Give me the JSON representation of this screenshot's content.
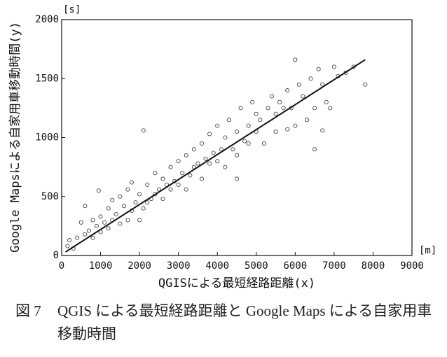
{
  "chart_data": {
    "type": "scatter",
    "y_unit": "[s]",
    "x_unit": "[m]",
    "xlabel": "QGISによる最短経路距離(x)",
    "ylabel": "Google Mapsによる自家用車移動時間(y)",
    "xlim": [
      0,
      9000
    ],
    "xticks": [
      0,
      1000,
      2000,
      3000,
      4000,
      5000,
      6000,
      7000,
      8000,
      9000
    ],
    "ylim": [
      0,
      2000
    ],
    "yticks": [
      0,
      500,
      1000,
      1500,
      2000
    ],
    "marker_color": "#444444",
    "line_color": "#111111",
    "x": [
      150,
      200,
      300,
      400,
      500,
      600,
      600,
      700,
      800,
      800,
      900,
      950,
      1000,
      1000,
      1100,
      1200,
      1200,
      1300,
      1300,
      1400,
      1500,
      1500,
      1600,
      1700,
      1700,
      1800,
      1800,
      1900,
      2000,
      2000,
      2100,
      2100,
      2200,
      2200,
      2300,
      2400,
      2400,
      2500,
      2600,
      2600,
      2700,
      2800,
      2800,
      2900,
      3000,
      3000,
      3100,
      3200,
      3200,
      3300,
      3400,
      3400,
      3500,
      3600,
      3600,
      3700,
      3800,
      3800,
      3900,
      4000,
      4000,
      4100,
      4200,
      4200,
      4300,
      4400,
      4500,
      4500,
      4600,
      4700,
      4800,
      4800,
      4900,
      5000,
      5000,
      5100,
      5200,
      5300,
      5400,
      5500,
      5500,
      5600,
      5700,
      5800,
      5900,
      6000,
      6000,
      6100,
      6200,
      6300,
      6400,
      6500,
      6600,
      6700,
      6800,
      6900,
      7000,
      7100,
      7300,
      7500,
      7800,
      6500,
      5800,
      4500,
      6700
    ],
    "y": [
      80,
      130,
      60,
      150,
      280,
      420,
      180,
      210,
      300,
      150,
      250,
      550,
      200,
      330,
      280,
      400,
      230,
      300,
      470,
      350,
      500,
      270,
      420,
      560,
      300,
      380,
      620,
      450,
      520,
      300,
      1060,
      400,
      600,
      450,
      480,
      700,
      520,
      560,
      650,
      480,
      600,
      750,
      560,
      630,
      800,
      600,
      700,
      850,
      560,
      680,
      900,
      750,
      780,
      950,
      650,
      820,
      1030,
      780,
      870,
      1100,
      800,
      900,
      1000,
      750,
      1150,
      900,
      1050,
      850,
      1250,
      970,
      1100,
      950,
      1300,
      1050,
      1200,
      1150,
      950,
      1250,
      1350,
      1050,
      1200,
      1300,
      1250,
      1400,
      1250,
      1660,
      1100,
      1450,
      1350,
      1150,
      1500,
      1250,
      1580,
      1450,
      1300,
      1250,
      1600,
      1520,
      1550,
      1600,
      1450,
      900,
      1070,
      650,
      1060
    ],
    "fit_line": {
      "x": [
        100,
        7800
      ],
      "y": [
        30,
        1660
      ]
    },
    "caption_label": "図 7",
    "caption": "QGIS による最短経路距離と Google Maps による自家用車移動時間"
  }
}
